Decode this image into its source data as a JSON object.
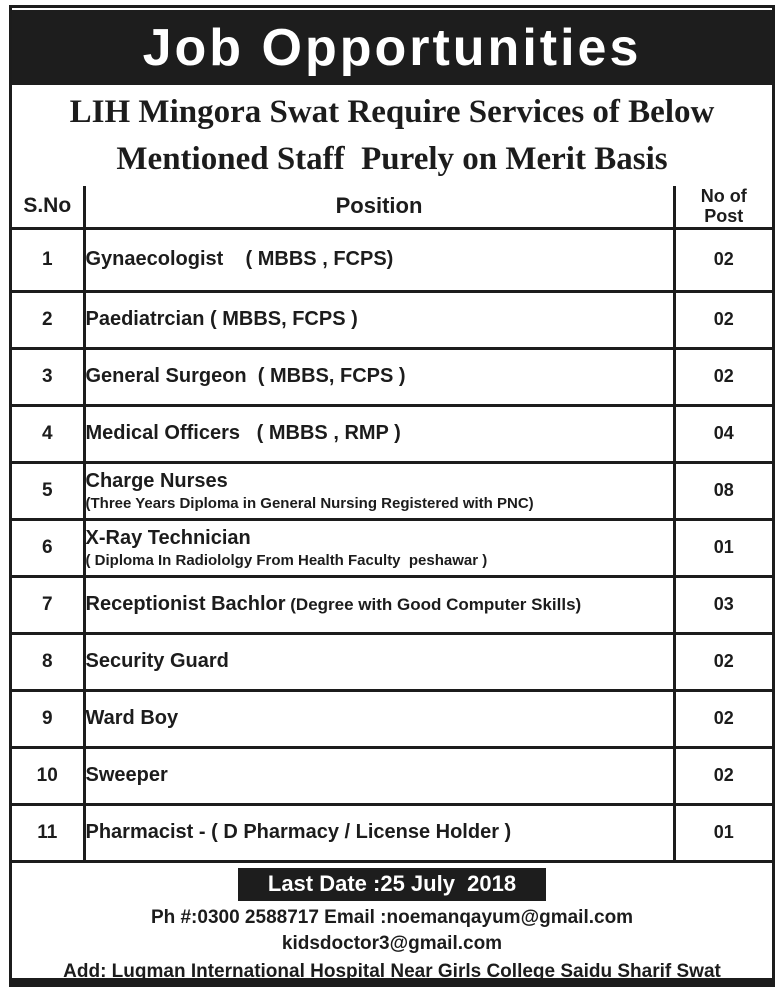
{
  "ad": {
    "title": "Job Opportunities",
    "subtitle": {
      "line1": "LIH Mingora Swat Require Services of Below",
      "line2": "Mentioned Staff  Purely on Merit Basis"
    },
    "table": {
      "headers": {
        "sno": "S.No",
        "position": "Position",
        "posts": "No of\nPost"
      },
      "rows": [
        {
          "sno": "1",
          "position": "Gynaecologist    ( MBBS , FCPS)",
          "posts": "02"
        },
        {
          "sno": "2",
          "position": "Paediatrcian ( MBBS, FCPS )",
          "posts": "02"
        },
        {
          "sno": "3",
          "position": "General Surgeon  ( MBBS, FCPS )",
          "posts": "02"
        },
        {
          "sno": "4",
          "position": "Medical Officers   ( MBBS , RMP )",
          "posts": "04"
        },
        {
          "sno": "5",
          "position": "Charge Nurses",
          "detail": "(Three Years Diploma in General Nursing Registered with PNC)",
          "posts": "08"
        },
        {
          "sno": "6",
          "position": "X-Ray Technician",
          "detail": "( Diploma In Radiololgy From Health Faculty  peshawar )",
          "posts": "01"
        },
        {
          "sno": "7",
          "position": "Receptionist Bachlor",
          "note": "(Degree with Good Computer Skills)",
          "posts": "03"
        },
        {
          "sno": "8",
          "position": "Security Guard",
          "posts": "02"
        },
        {
          "sno": "9",
          "position": "Ward Boy",
          "posts": "02"
        },
        {
          "sno": "10",
          "position": "Sweeper",
          "posts": "02"
        },
        {
          "sno": "11",
          "position": "Pharmacist - ( D Pharmacy / License Holder )",
          "posts": "01"
        }
      ]
    },
    "footer": {
      "last_date": "Last Date :25 July  2018",
      "contact_line1": "Ph #:0300 2588717 Email :noemanqayum@gmail.com",
      "contact_line2": "kidsdoctor3@gmail.com",
      "address": "Add: Luqman International Hospital Near Girls College Saidu Sharif Swat"
    },
    "colors": {
      "banner_bg": "#1d1d1d",
      "text": "#1c1c1c",
      "background": "#ffffff",
      "banner_text": "#ffffff"
    }
  }
}
